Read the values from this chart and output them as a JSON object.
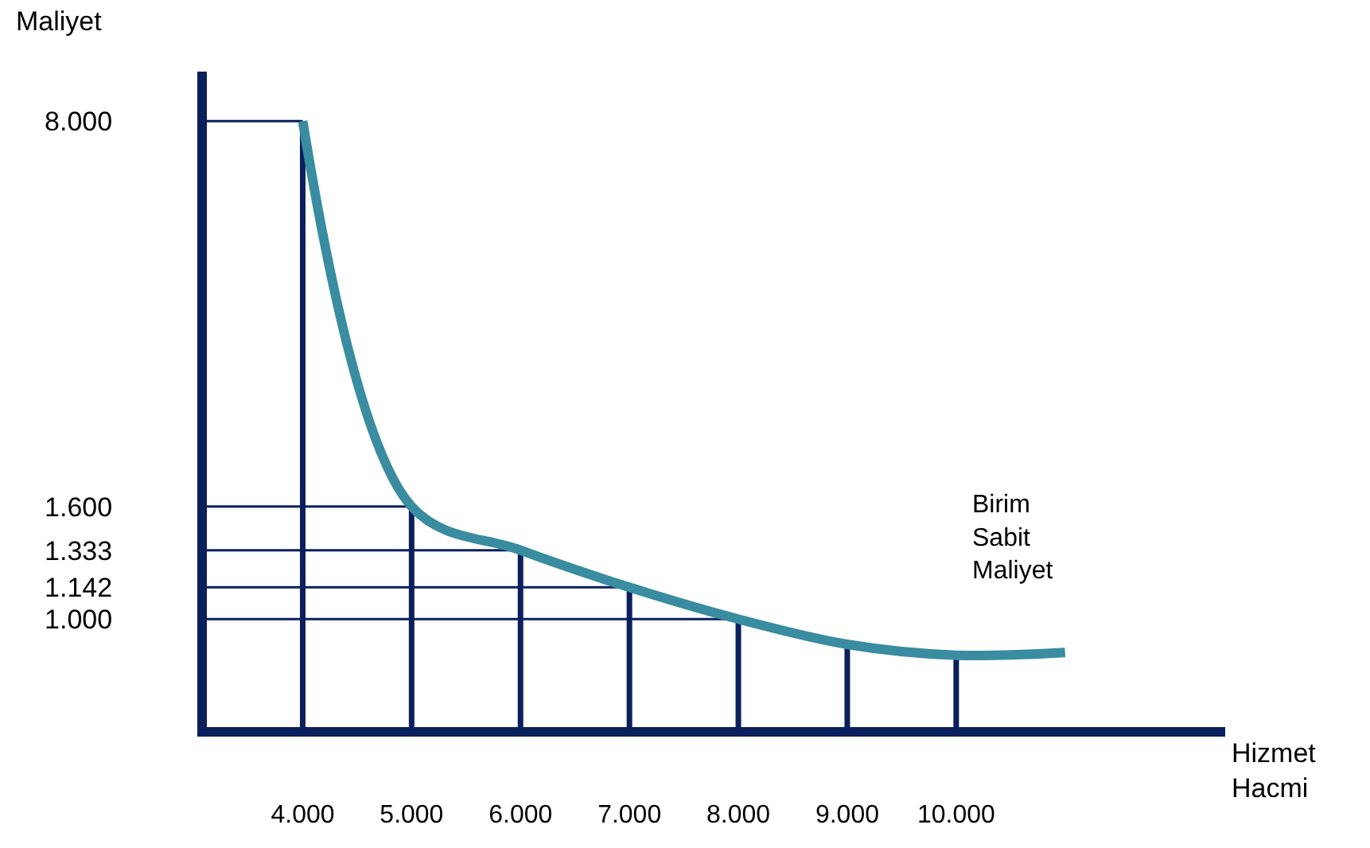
{
  "chart_data": {
    "type": "line",
    "xlabel": "Hizmet Hacmi",
    "log": "y",
    "annotations": [
      "Maliyet"
    ],
    "x": [
      4000,
      5000,
      6000,
      7000,
      8000,
      9000,
      10000,
      11000
    ],
    "xlim": [
      3120,
      12470
    ],
    "xticks": [
      {
        "value": 4000,
        "label": "4.000"
      },
      {
        "value": 5000,
        "label": "5.000"
      },
      {
        "value": 6000,
        "label": "6.000"
      },
      {
        "value": 7000,
        "label": "7.000"
      },
      {
        "value": 8000,
        "label": "8.000"
      },
      {
        "value": 9000,
        "label": "9.000"
      },
      {
        "value": 10000,
        "label": "10.000"
      }
    ],
    "ylim": [
      637,
      9840
    ],
    "yticks": [
      {
        "value": 8000,
        "label": "8.000"
      },
      {
        "value": 1600,
        "label": "1.600"
      },
      {
        "value": 1333,
        "label": "1.333"
      },
      {
        "value": 1142,
        "label": "1.142"
      },
      {
        "value": 1000,
        "label": "1.000"
      }
    ],
    "series": [
      {
        "name": "Birim Sabit Maliyet",
        "color": "#3a8ca0",
        "values": [
          8000,
          1600,
          1333,
          1142,
          1000,
          900,
          860,
          870
        ]
      },
      {
        "type": "bar",
        "color": "#0a1f5c",
        "x": [
          4000,
          5000,
          6000,
          7000,
          8000,
          9000,
          10000
        ],
        "values": [
          8000,
          1600,
          1333,
          1142,
          1000,
          900,
          860
        ]
      }
    ],
    "ref_lines": [
      {
        "axis": "y",
        "value": 8000,
        "color": "#0a1f5c"
      },
      {
        "axis": "y",
        "value": 1600,
        "color": "#0a1f5c"
      },
      {
        "axis": "y",
        "value": 1333,
        "color": "#0a1f5c"
      },
      {
        "axis": "y",
        "value": 1142,
        "color": "#0a1f5c"
      },
      {
        "axis": "y",
        "value": 1000,
        "color": "#0a1f5c"
      }
    ],
    "grid": false,
    "legend": false,
    "marker": "none",
    "line_style": "solid"
  }
}
